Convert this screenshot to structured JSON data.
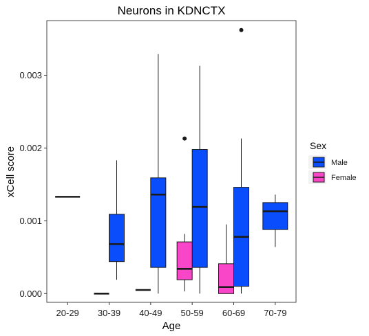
{
  "chart_data": {
    "type": "boxplot",
    "title": "Neurons in KDNCTX",
    "xlabel": "Age",
    "ylabel": "xCell score",
    "categories": [
      "20-29",
      "30-39",
      "40-49",
      "50-59",
      "60-69",
      "70-79"
    ],
    "ylim": [
      -0.00012,
      0.00375
    ],
    "yticks": [
      0.0,
      0.001,
      0.002,
      0.003
    ],
    "ytick_labels": [
      "0.000",
      "0.001",
      "0.002",
      "0.003"
    ],
    "grid": false,
    "legend": {
      "title": "Sex",
      "position": "right",
      "entries": [
        {
          "label": "Male",
          "color": "#0a4dfc"
        },
        {
          "label": "Female",
          "color": "#f946c8"
        }
      ]
    },
    "series": [
      {
        "name": "Male",
        "color": "#0a4dfc",
        "boxes": [
          {
            "category": "20-29",
            "slot": "full",
            "min": 0.00133,
            "q1": 0.00133,
            "median": 0.00133,
            "q3": 0.00133,
            "max": 0.00133,
            "outliers": []
          },
          {
            "category": "30-39",
            "slot": "right",
            "min": 0.00019,
            "q1": 0.00044,
            "median": 0.00068,
            "q3": 0.00109,
            "max": 0.00183,
            "outliers": []
          },
          {
            "category": "40-49",
            "slot": "right",
            "min": 0.0,
            "q1": 0.00036,
            "median": 0.00136,
            "q3": 0.00159,
            "max": 0.00329,
            "outliers": []
          },
          {
            "category": "50-59",
            "slot": "right",
            "min": 0.0,
            "q1": 0.00036,
            "median": 0.00119,
            "q3": 0.00198,
            "max": 0.00313,
            "outliers": []
          },
          {
            "category": "60-69",
            "slot": "right",
            "min": 0.0,
            "q1": 0.0001,
            "median": 0.00078,
            "q3": 0.00146,
            "max": 0.00213,
            "outliers": [
              0.00362
            ]
          },
          {
            "category": "70-79",
            "slot": "full",
            "min": 0.00064,
            "q1": 0.00088,
            "median": 0.00113,
            "q3": 0.00125,
            "max": 0.00136,
            "outliers": []
          }
        ]
      },
      {
        "name": "Female",
        "color": "#f946c8",
        "boxes": [
          {
            "category": "30-39",
            "slot": "left",
            "min": 0.0,
            "q1": 0.0,
            "median": 0.0,
            "q3": 0.0,
            "max": 0.0,
            "outliers": []
          },
          {
            "category": "40-49",
            "slot": "left",
            "min": 5e-05,
            "q1": 5e-05,
            "median": 5e-05,
            "q3": 5e-05,
            "max": 5e-05,
            "outliers": []
          },
          {
            "category": "50-59",
            "slot": "left",
            "min": 3e-05,
            "q1": 0.00019,
            "median": 0.00034,
            "q3": 0.00071,
            "max": 0.00082,
            "outliers": [
              0.00213
            ]
          },
          {
            "category": "60-69",
            "slot": "left",
            "min": 0.0,
            "q1": 0.0,
            "median": 9e-05,
            "q3": 0.00041,
            "max": 0.00095,
            "outliers": []
          }
        ]
      }
    ]
  }
}
